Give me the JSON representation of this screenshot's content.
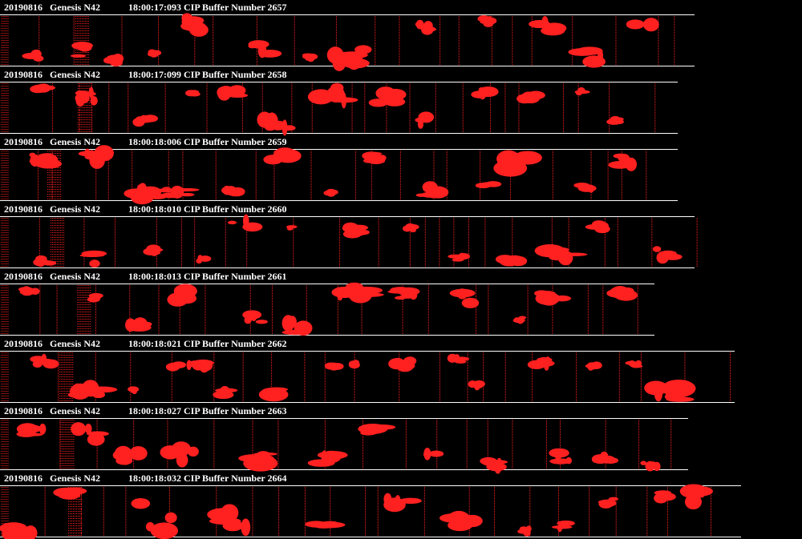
{
  "buffers": [
    {
      "date": "20190816",
      "probe": "Genesis N42",
      "info": "18:00:17:093 CIP Buffer Number 2657"
    },
    {
      "date": "20190816",
      "probe": "Genesis N42",
      "info": "18:00:17:099 CIP Buffer Number 2658"
    },
    {
      "date": "20190816",
      "probe": "Genesis N42",
      "info": "18:00:18:006 CIP Buffer Number 2659"
    },
    {
      "date": "20190816",
      "probe": "Genesis N42",
      "info": "18:00:18:010 CIP Buffer Number 2660"
    },
    {
      "date": "20190816",
      "probe": "Genesis N42",
      "info": "18:00:18:013 CIP Buffer Number 2661"
    },
    {
      "date": "20190816",
      "probe": "Genesis N42",
      "info": "18:00:18:021 CIP Buffer Number 2662"
    },
    {
      "date": "20190816",
      "probe": "Genesis N42",
      "info": "18:00:18:027 CIP Buffer Number 2663"
    },
    {
      "date": "20190816",
      "probe": "Genesis N42",
      "info": "18:00:18:032 CIP Buffer Number 2664"
    }
  ]
}
